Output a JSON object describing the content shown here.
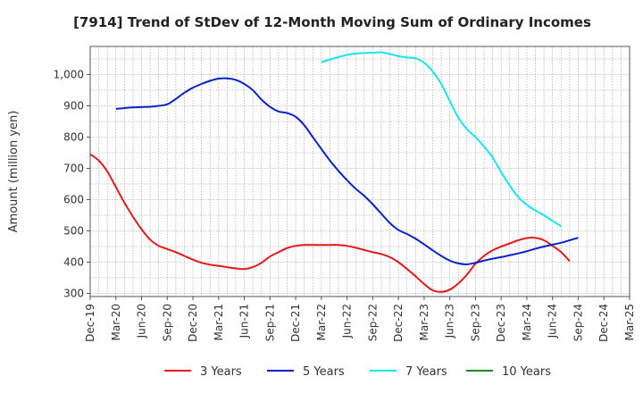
{
  "chart_data": {
    "type": "line",
    "title": "[7914]  Trend of StDev of 12-Month Moving Sum of Ordinary Incomes",
    "ylabel": "Amount (million yen)",
    "xlabel": "",
    "ylim": [
      290,
      1090
    ],
    "yticks": [
      300,
      400,
      500,
      600,
      700,
      800,
      900,
      "1,000"
    ],
    "x_tick_labels": [
      "Dec-19",
      "Mar-20",
      "Jun-20",
      "Sep-20",
      "Dec-20",
      "Mar-21",
      "Jun-21",
      "Sep-21",
      "Dec-21",
      "Mar-22",
      "Jun-22",
      "Sep-22",
      "Dec-22",
      "Mar-23",
      "Jun-23",
      "Sep-23",
      "Dec-23",
      "Mar-24",
      "Jun-24",
      "Sep-24",
      "Dec-24",
      "Mar-25"
    ],
    "grid": true,
    "legend_position": "bottom",
    "series": [
      {
        "name": "3 Years",
        "color": "#e31a1c",
        "start": "Dec-19",
        "values": [
          745,
          725,
          690,
          640,
          590,
          545,
          505,
          472,
          452,
          442,
          432,
          420,
          408,
          398,
          392,
          388,
          384,
          380,
          378,
          384,
          398,
          418,
          432,
          445,
          452,
          455,
          455,
          455,
          455,
          455,
          452,
          446,
          439,
          432,
          426,
          416,
          400,
          378,
          355,
          330,
          310,
          305,
          312,
          332,
          360,
          395,
          420,
          438,
          450,
          460,
          470,
          477,
          478,
          470,
          452,
          432,
          403
        ]
      },
      {
        "name": "5 Years",
        "color": "#0a22c8",
        "start": "Mar-20",
        "values": [
          890,
          893,
          895,
          896,
          897,
          900,
          905,
          922,
          942,
          958,
          970,
          980,
          987,
          988,
          983,
          970,
          950,
          920,
          897,
          882,
          877,
          865,
          838,
          800,
          762,
          725,
          692,
          662,
          635,
          612,
          585,
          555,
          525,
          503,
          490,
          475,
          457,
          438,
          420,
          405,
          396,
          393,
          398,
          405,
          411,
          416,
          422,
          428,
          435,
          443,
          450,
          456,
          462,
          470,
          478
        ]
      },
      {
        "name": "7 Years",
        "color": "#17e6ee",
        "start": "Mar-22",
        "values": [
          1040,
          1048,
          1056,
          1063,
          1067,
          1069,
          1070,
          1071,
          1066,
          1059,
          1055,
          1052,
          1038,
          1010,
          970,
          915,
          862,
          825,
          800,
          770,
          735,
          688,
          645,
          608,
          583,
          565,
          550,
          532,
          515
        ]
      },
      {
        "name": "10 Years",
        "color": "#1a8a1a",
        "start": "Dec-24",
        "values": []
      }
    ]
  }
}
